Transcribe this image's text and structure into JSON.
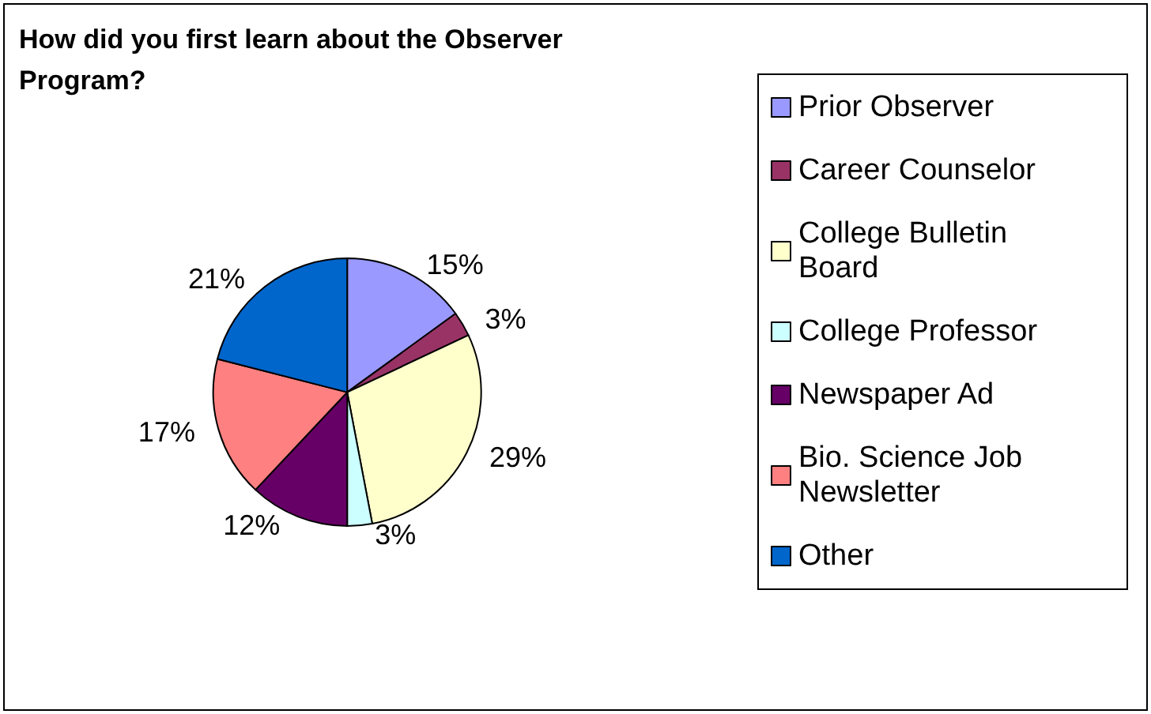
{
  "chart_data": {
    "type": "pie",
    "title": "How did you first learn about the Observer Program?",
    "categories": [
      "Prior Observer",
      "Career Counselor",
      "College Bulletin Board",
      "College Professor",
      "Newspaper Ad",
      "Bio. Science Job Newsletter",
      "Other"
    ],
    "values": [
      15,
      3,
      29,
      3,
      12,
      17,
      21
    ],
    "value_labels": [
      "15%",
      "3%",
      "29%",
      "3%",
      "12%",
      "17%",
      "21%"
    ],
    "colors": [
      "#9999ff",
      "#993366",
      "#ffffcc",
      "#ccffff",
      "#660066",
      "#ff8080",
      "#0066cc"
    ],
    "legend": "right"
  }
}
